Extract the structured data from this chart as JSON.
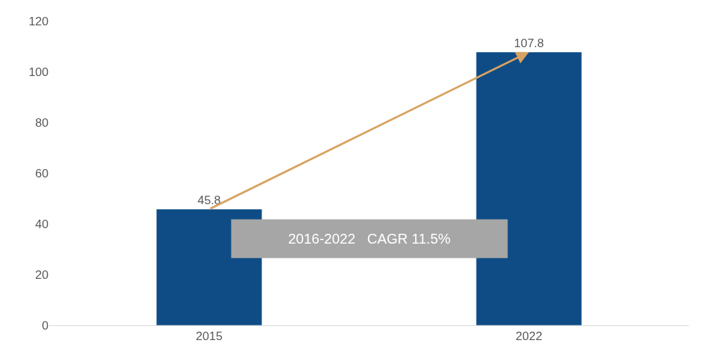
{
  "chart_data": {
    "type": "bar",
    "categories": [
      "2015",
      "2022"
    ],
    "values": [
      45.8,
      107.8
    ],
    "color": "#0f4c85",
    "ylim": [
      0,
      120
    ],
    "yticks": [
      0,
      20,
      40,
      60,
      80,
      100,
      120
    ],
    "data_labels": true,
    "annotations": [
      "2016-2022   CAGR 11.5%"
    ]
  }
}
